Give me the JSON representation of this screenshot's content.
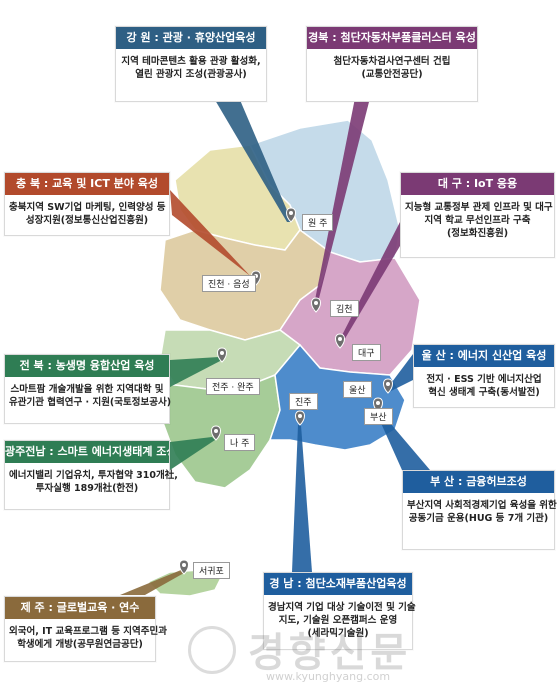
{
  "colors": {
    "gangwon": "#c5dbea",
    "gyeongbuk": "#d6a6c8",
    "chungbuk": "#e8e2b0",
    "chungnam": "#e0cfa8",
    "jeonbuk": "#c6dcb6",
    "jeonnam": "#a6cc98",
    "gyeongnam": "#4e8ccc",
    "jeju": "#b5d4a0",
    "hdr_gangwon": "#2e5f84",
    "hdr_gyeongbuk": "#7b3a74",
    "hdr_chungbuk": "#b24a2c",
    "hdr_daegu": "#7b3a74",
    "hdr_jeonbuk": "#2f7d54",
    "hdr_ulsan": "#1f5e9e",
    "hdr_gwangju": "#2f7d54",
    "hdr_busan": "#1f5e9e",
    "hdr_jeju": "#8a6a3c",
    "hdr_gyeongnam": "#1f5e9e",
    "pin": "#6e6e6e"
  },
  "callouts": {
    "gangwon": {
      "title": "강 원 : 관광 · 휴양산업육성",
      "lines": [
        "지역 테마콘텐츠 활용 관광 활성화,",
        "열린 관광지 조성(관광공사)"
      ]
    },
    "gyeongbuk": {
      "title": "경북 : 첨단자동차부품클러스터 육성",
      "lines": [
        "첨단자동차검사연구센터 건립",
        "(교통안전공단)"
      ]
    },
    "chungbuk": {
      "title": "충 북 : 교육 및 ICT 분야 육성",
      "lines": [
        "충북지역 SW기업 마케팅, 인력양성 등",
        "성장지원(정보통신산업진흥원)"
      ]
    },
    "daegu": {
      "title": "대 구 : IoT 응용",
      "lines": [
        "지능형 교통정부 관제 인프라 및 대구",
        "지역 학교 무선인프라 구축",
        "(정보화진흥원)"
      ]
    },
    "jeonbuk": {
      "title": "전 북 : 농생명 융합산업 육성",
      "lines": [
        "스마트팜 개술개발을 위한 지역대학 및",
        "유관기관 협력연구 · 지원(국토정보공사)"
      ]
    },
    "ulsan": {
      "title": "울 산 : 에너지 신산업 육성",
      "lines": [
        "전지 · ESS 기반 에너지산업",
        "혁신 생태계 구축(동서발전)"
      ]
    },
    "gwangju": {
      "title": "광주전남 : 스마트 에너지생태계 조성",
      "lines": [
        "에너지밸리 기업유치, 투자협약 310개社,",
        "투자실행 189개社(한전)"
      ]
    },
    "busan": {
      "title": "부 산 : 금융허브조성",
      "lines": [
        "부산지역 사회적경제기업 육성을 위한",
        "공동기금 운용(HUG 등 7개 기관)"
      ]
    },
    "jeju": {
      "title": "제 주 : 글로벌교육 · 연수",
      "lines": [
        "외국어, IT 교육프로그램 등 지역주민과",
        "학생에게 개방(공무원연금공단)"
      ]
    },
    "gyeongnam": {
      "title": "경 남 : 첨단소재부품산업육성",
      "lines": [
        "경남지역 기업 대상 기술이전 및 기술",
        "지도, 기술원 오픈캠퍼스 운영",
        "(세라믹기술원)"
      ]
    }
  },
  "cities": {
    "wonju": "원 주",
    "jincheon": "진천 · 음성",
    "gimcheon": "김천",
    "daegu": "대구",
    "jeonju": "전주 · 완주",
    "ulsan": "울산",
    "jinju": "진주",
    "busan": "부산",
    "naju": "나 주",
    "seogwipo": "서귀포"
  },
  "watermark": {
    "title": "경향신문",
    "url": "www.kyunghyang.com"
  }
}
